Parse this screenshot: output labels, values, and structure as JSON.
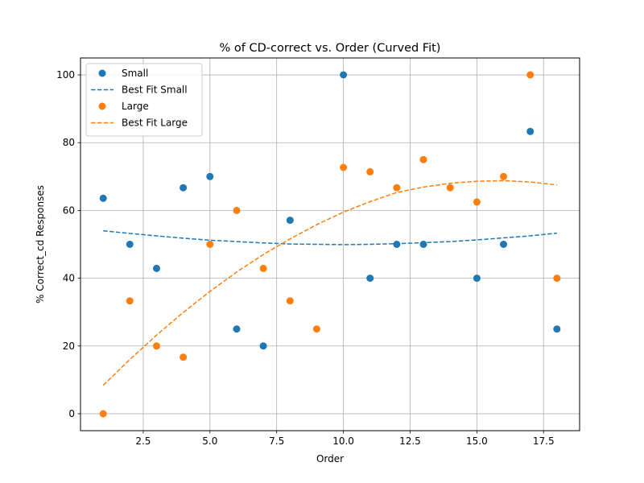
{
  "chart_data": {
    "type": "scatter",
    "title": "% of CD-correct vs. Order (Curved Fit)",
    "xlabel": "Order",
    "ylabel": "% Correct_cd Responses",
    "xlim": [
      0.15,
      18.85
    ],
    "ylim": [
      -5,
      105
    ],
    "xticks": [
      2.5,
      5.0,
      7.5,
      10.0,
      12.5,
      15.0,
      17.5
    ],
    "xtick_labels": [
      "2.5",
      "5.0",
      "7.5",
      "10.0",
      "12.5",
      "15.0",
      "17.5"
    ],
    "yticks": [
      0,
      20,
      40,
      60,
      80,
      100
    ],
    "ytick_labels": [
      "0",
      "20",
      "40",
      "60",
      "80",
      "100"
    ],
    "grid": true,
    "legend_position": "top-left",
    "series": [
      {
        "name": "Small",
        "kind": "scatter",
        "color": "#1f77b4",
        "x": [
          1,
          2,
          3,
          4,
          5,
          6,
          7,
          8,
          10,
          11,
          12,
          13,
          15,
          16,
          17,
          18
        ],
        "y": [
          63.6,
          50,
          42.9,
          66.7,
          70,
          25,
          20,
          57.1,
          100,
          40,
          50,
          50,
          40,
          50,
          83.3,
          25
        ]
      },
      {
        "name": "Best Fit Small",
        "kind": "line",
        "style": "dashed",
        "color": "#1f77b4",
        "x": [
          1,
          2,
          3,
          4,
          5,
          6,
          7,
          8,
          9,
          10,
          11,
          12,
          13,
          14,
          15,
          16,
          17,
          18
        ],
        "y": [
          54.0,
          53.2,
          52.5,
          51.8,
          51.2,
          50.8,
          50.4,
          50.1,
          50.0,
          49.9,
          50.0,
          50.2,
          50.5,
          50.8,
          51.3,
          51.9,
          52.5,
          53.3
        ]
      },
      {
        "name": "Large",
        "kind": "scatter",
        "color": "#ff7f0e",
        "x": [
          1,
          2,
          3,
          4,
          5,
          6,
          7,
          8,
          9,
          10,
          11,
          12,
          13,
          14,
          15,
          16,
          17,
          18
        ],
        "y": [
          0,
          33.3,
          20,
          16.7,
          50,
          60,
          42.9,
          33.3,
          25,
          72.7,
          71.4,
          66.7,
          75,
          66.7,
          62.5,
          70,
          100,
          40
        ]
      },
      {
        "name": "Best Fit Large",
        "kind": "line",
        "style": "dashed",
        "color": "#ff7f0e",
        "x": [
          1,
          2,
          3,
          4,
          5,
          6,
          7,
          8,
          9,
          10,
          11,
          12,
          13,
          14,
          15,
          16,
          17,
          18
        ],
        "y": [
          8.4,
          16.0,
          23.2,
          29.9,
          36.1,
          41.8,
          47.0,
          51.6,
          55.8,
          59.5,
          62.6,
          65.3,
          66.9,
          68.0,
          68.6,
          68.8,
          68.4,
          67.5
        ]
      }
    ]
  }
}
